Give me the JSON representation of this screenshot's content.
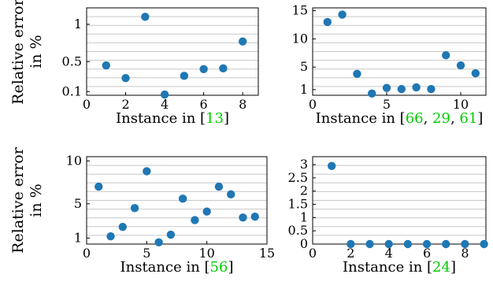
{
  "chart_data": [
    {
      "type": "scatter",
      "y_label_lines": [
        "Relative error",
        "in %"
      ],
      "x_label_prefix": "Instance in [",
      "x_label_refs": [
        "13"
      ],
      "x_label_suffix": "]",
      "x": [
        1,
        2,
        3,
        4,
        5,
        6,
        7,
        8
      ],
      "y": [
        0.45,
        0.28,
        1.1,
        0.06,
        0.31,
        0.4,
        0.41,
        0.77
      ],
      "xlim": [
        0,
        8.8
      ],
      "ylim": [
        0.05,
        1.22
      ],
      "xticks": [
        0,
        2,
        4,
        6,
        8
      ],
      "yticks": [
        0.1,
        0.5,
        1
      ],
      "ytick_labels": [
        "0.1",
        "0.5",
        "1"
      ],
      "grid": true,
      "point_color": "#1f77b4",
      "ref_color": "#00cc00"
    },
    {
      "type": "scatter",
      "y_label_lines": [],
      "x_label_prefix": "Instance in [",
      "x_label_refs": [
        "66",
        "29",
        "61"
      ],
      "x_label_suffix": "]",
      "x": [
        1,
        2,
        3,
        4,
        5,
        6,
        7,
        8,
        9,
        10,
        11
      ],
      "y": [
        13,
        14.3,
        3.8,
        0.3,
        1.3,
        1.1,
        1.4,
        1.1,
        7.1,
        5.3,
        3.9
      ],
      "xlim": [
        0,
        11.7
      ],
      "ylim": [
        0,
        15.5
      ],
      "xticks": [
        0,
        5,
        10
      ],
      "yticks": [
        1,
        5,
        10,
        15
      ],
      "ytick_labels": [
        "1",
        "5",
        "10",
        "15"
      ],
      "grid": true,
      "point_color": "#1f77b4",
      "ref_color": "#00cc00"
    },
    {
      "type": "scatter",
      "y_label_lines": [
        "Relative error",
        "in %"
      ],
      "x_label_prefix": "Instance in [",
      "x_label_refs": [
        "56"
      ],
      "x_label_suffix": "]",
      "x": [
        1,
        2,
        3,
        4,
        5,
        6,
        7,
        8,
        9,
        10,
        11,
        12,
        13,
        14
      ],
      "y": [
        7.0,
        1.2,
        2.3,
        4.5,
        8.8,
        0.5,
        1.4,
        5.6,
        3.1,
        4.1,
        7.0,
        6.1,
        3.4,
        3.5
      ],
      "xlim": [
        0,
        15
      ],
      "ylim": [
        0.3,
        10.5
      ],
      "xticks": [
        0,
        5,
        10,
        15
      ],
      "yticks": [
        1,
        5,
        10
      ],
      "ytick_labels": [
        "1",
        "5",
        "10"
      ],
      "grid": true,
      "point_color": "#1f77b4",
      "ref_color": "#00cc00"
    },
    {
      "type": "scatter",
      "y_label_lines": [],
      "x_label_prefix": "Instance in [",
      "x_label_refs": [
        "24"
      ],
      "x_label_suffix": "]",
      "x": [
        1,
        2,
        3,
        4,
        5,
        6,
        7,
        8,
        9
      ],
      "y": [
        2.95,
        0,
        0,
        0,
        0,
        0,
        0,
        0,
        0
      ],
      "xlim": [
        0,
        9.1
      ],
      "ylim": [
        0,
        3.3
      ],
      "xticks": [
        0,
        2,
        4,
        6,
        8
      ],
      "yticks": [
        0,
        0.5,
        1,
        1.5,
        2,
        2.5,
        3
      ],
      "ytick_labels": [
        "0",
        "0.5",
        "1",
        "1.5",
        "2",
        "2.5",
        "3"
      ],
      "grid": true,
      "point_color": "#1f77b4",
      "ref_color": "#00cc00"
    }
  ]
}
